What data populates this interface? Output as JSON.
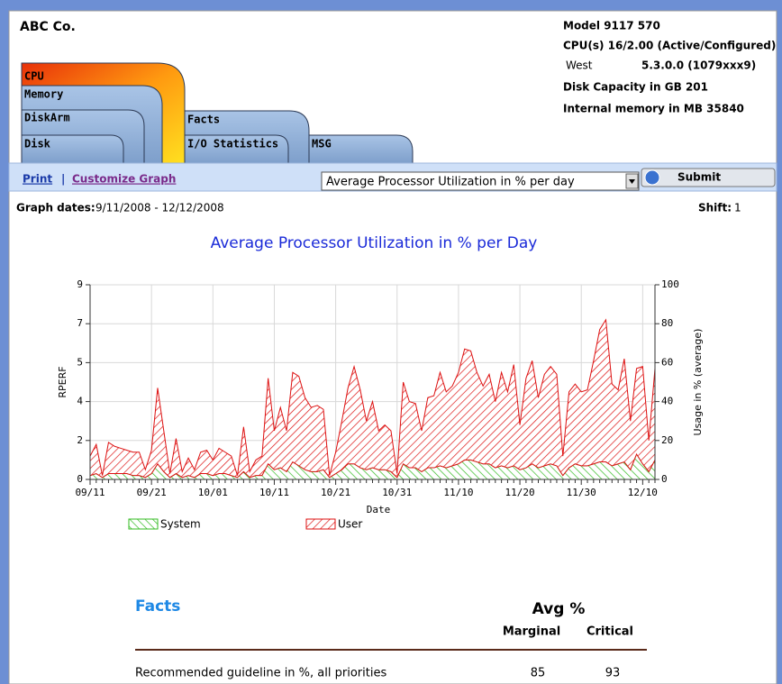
{
  "header": {
    "company": "ABC Co.",
    "model": "Model 9117 570",
    "cpus": "CPU(s) 16/2.00 (Active/Configured)",
    "region": "West",
    "version": "5.3.0.0  (1079xxx9)",
    "disk": "Disk Capacity in GB 201",
    "memory": "Internal memory in MB 35840"
  },
  "tabs": [
    "CPU",
    "Memory",
    "DiskArm",
    "Disk",
    "Facts",
    "I/O Statistics",
    "MSG"
  ],
  "toolbar": {
    "print": "Print",
    "separator": "|",
    "customize": "Customize Graph",
    "select": "Average Processor Utilization in % per day",
    "submit": "Submit"
  },
  "graph_dates": {
    "label": "Graph dates:",
    "value": "9/11/2008 - 12/12/2008"
  },
  "shift": {
    "label": "Shift:",
    "value": 1
  },
  "chart_data": {
    "type": "area",
    "stacked": true,
    "title": "Average Processor Utilization in % per Day",
    "x_label": "Date",
    "y_label": "RPERF",
    "y2_label": "Usage in % (average)",
    "categories": [
      "09/11",
      null,
      null,
      null,
      null,
      null,
      null,
      null,
      null,
      null,
      "09/21",
      null,
      null,
      null,
      null,
      null,
      null,
      null,
      null,
      null,
      "10/01",
      null,
      null,
      null,
      null,
      null,
      null,
      null,
      null,
      null,
      "10/11",
      null,
      null,
      null,
      null,
      null,
      null,
      null,
      null,
      null,
      "10/21",
      null,
      null,
      null,
      null,
      null,
      null,
      null,
      null,
      null,
      "10/31",
      null,
      null,
      null,
      null,
      null,
      null,
      null,
      null,
      null,
      "11/10",
      null,
      null,
      null,
      null,
      null,
      null,
      null,
      null,
      null,
      "11/20",
      null,
      null,
      null,
      null,
      null,
      null,
      null,
      null,
      null,
      "11/30",
      null,
      null,
      null,
      null,
      null,
      null,
      null,
      null,
      null,
      "12/10",
      null,
      null
    ],
    "ylim": [
      0,
      9
    ],
    "yticks": [
      0,
      {
        "value": 1.8,
        "label": "2"
      },
      {
        "value": 3.6,
        "label": "4"
      },
      {
        "value": 5.4,
        "label": "5"
      },
      {
        "value": 7.2,
        "label": "7"
      },
      9
    ],
    "y2lim": [
      0,
      100
    ],
    "y2ticks": [
      0,
      20,
      40,
      60,
      80,
      100
    ],
    "grid": true,
    "legend": "bottom",
    "series": [
      {
        "name": "System",
        "color": "#33bb22",
        "axis": "y2",
        "values": [
          2,
          3,
          1,
          3,
          3,
          3,
          3,
          2,
          2,
          1,
          3,
          8,
          4,
          1,
          3,
          1,
          2,
          1,
          3,
          3,
          2,
          3,
          3,
          2,
          1,
          4,
          1,
          2,
          2,
          8,
          5,
          6,
          4,
          9,
          7,
          5,
          4,
          4,
          5,
          1,
          3,
          5,
          8,
          8,
          6,
          5,
          6,
          5,
          5,
          4,
          1,
          8,
          6,
          6,
          4,
          6,
          6,
          7,
          6,
          7,
          8,
          10,
          10,
          9,
          8,
          8,
          6,
          7,
          6,
          7,
          5,
          6,
          8,
          6,
          7,
          8,
          7,
          2,
          6,
          8,
          7,
          7,
          8,
          9,
          9,
          7,
          8,
          9,
          5,
          13,
          8,
          4,
          10
        ]
      },
      {
        "name": "User",
        "color": "#dd1111",
        "axis": "y2",
        "values": [
          10,
          15,
          1,
          16,
          14,
          13,
          12,
          12,
          12,
          4,
          12,
          39,
          21,
          2,
          18,
          3,
          9,
          4,
          11,
          12,
          8,
          13,
          11,
          10,
          1,
          23,
          3,
          8,
          10,
          44,
          20,
          31,
          21,
          46,
          46,
          37,
          33,
          34,
          31,
          1,
          11,
          25,
          39,
          50,
          40,
          25,
          34,
          20,
          23,
          21,
          2,
          42,
          34,
          33,
          21,
          36,
          37,
          48,
          39,
          41,
          47,
          57,
          56,
          46,
          40,
          46,
          34,
          48,
          39,
          52,
          23,
          46,
          53,
          36,
          47,
          50,
          47,
          10,
          39,
          41,
          38,
          39,
          53,
          68,
          73,
          42,
          38,
          53,
          25,
          44,
          50,
          16,
          47
        ]
      }
    ]
  },
  "facts": {
    "title": "Facts",
    "avg_header": "Avg %",
    "columns": [
      "Marginal",
      "Critical"
    ],
    "rows": [
      {
        "label": "Recommended guideline in %, all priorities",
        "values": [
          85,
          93
        ]
      }
    ]
  }
}
